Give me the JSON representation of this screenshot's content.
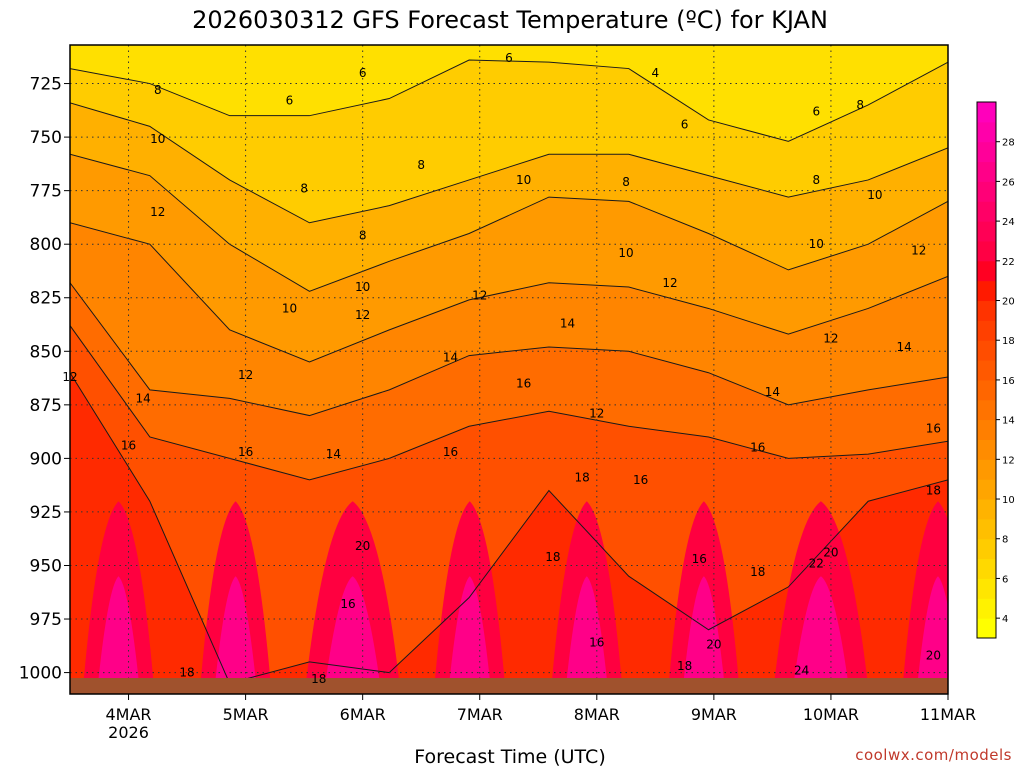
{
  "chart_data": {
    "type": "heatmap",
    "title": "2026030312 GFS Forecast Temperature (ºC) for KJAN",
    "xlabel": "Forecast Time (UTC)",
    "ylabel": "",
    "credit": "coolwx.com/models",
    "y_axis": {
      "unit": "hPa",
      "inverted": true,
      "range": [
        1010,
        707
      ],
      "ticks": [
        "725",
        "750",
        "775",
        "800",
        "825",
        "850",
        "875",
        "900",
        "925",
        "950",
        "975",
        "1000"
      ],
      "tick_values": [
        725,
        750,
        775,
        800,
        825,
        850,
        875,
        900,
        925,
        950,
        975,
        1000
      ]
    },
    "x_axis": {
      "range": [
        "2026-03-03T12",
        "2026-03-11T00"
      ],
      "ticks": [
        "4MAR",
        "5MAR",
        "6MAR",
        "7MAR",
        "8MAR",
        "9MAR",
        "10MAR",
        "11MAR"
      ],
      "tick_dates": [
        "2026-03-04",
        "2026-03-05",
        "2026-03-06",
        "2026-03-07",
        "2026-03-08",
        "2026-03-09",
        "2026-03-10",
        "2026-03-11"
      ],
      "sub_label": "2026"
    },
    "grid": true,
    "colorbar": {
      "position": "right",
      "ticks": [
        "4",
        "6",
        "8",
        "10",
        "12",
        "14",
        "16",
        "18",
        "20",
        "22",
        "24",
        "26",
        "28"
      ],
      "levels": [
        3,
        4,
        5,
        6,
        7,
        8,
        9,
        10,
        11,
        12,
        13,
        14,
        15,
        16,
        17,
        18,
        19,
        20,
        21,
        22,
        23,
        24,
        25,
        26,
        27,
        28,
        29,
        30
      ],
      "colors": [
        "#ffff00",
        "#fff200",
        "#ffe600",
        "#ffd900",
        "#ffcc00",
        "#ffbf00",
        "#ffb300",
        "#ffa500",
        "#ff9900",
        "#ff8c00",
        "#ff7f00",
        "#ff7300",
        "#ff6600",
        "#ff5900",
        "#ff4d00",
        "#ff4000",
        "#ff3300",
        "#ff1a00",
        "#ff0022",
        "#ff0044",
        "#ff0055",
        "#ff0066",
        "#ff0077",
        "#ff0088",
        "#ff0099",
        "#ff00aa",
        "#ff00bb"
      ]
    },
    "ground_color": "#a0522d",
    "isotherms": [
      {
        "value": 6,
        "pressure": [
          718,
          725,
          740,
          740,
          732,
          714,
          715,
          718,
          742,
          752,
          735,
          715
        ]
      },
      {
        "value": 8,
        "pressure": [
          734,
          745,
          770,
          790,
          782,
          770,
          758,
          758,
          768,
          778,
          770,
          755
        ]
      },
      {
        "value": 10,
        "pressure": [
          758,
          768,
          800,
          822,
          808,
          795,
          778,
          780,
          795,
          812,
          800,
          780
        ]
      },
      {
        "value": 12,
        "pressure": [
          790,
          800,
          840,
          855,
          840,
          826,
          818,
          820,
          830,
          842,
          830,
          815
        ]
      },
      {
        "value": 14,
        "pressure": [
          818,
          868,
          872,
          880,
          868,
          852,
          848,
          850,
          860,
          875,
          868,
          862
        ]
      },
      {
        "value": 16,
        "pressure": [
          838,
          890,
          900,
          910,
          900,
          885,
          878,
          885,
          890,
          900,
          898,
          892
        ]
      },
      {
        "value": 18,
        "pressure": [
          860,
          920,
          1005,
          995,
          1000,
          965,
          915,
          955,
          980,
          960,
          920,
          910
        ]
      }
    ],
    "annotations": [
      {
        "text": "4",
        "time": "2026-03-08T12",
        "pressure": 720
      },
      {
        "text": "6",
        "time": "2026-03-05T09",
        "pressure": 733
      },
      {
        "text": "6",
        "time": "2026-03-06T00",
        "pressure": 720
      },
      {
        "text": "6",
        "time": "2026-03-07T06",
        "pressure": 713
      },
      {
        "text": "6",
        "time": "2026-03-08T18",
        "pressure": 744
      },
      {
        "text": "6",
        "time": "2026-03-09T21",
        "pressure": 738
      },
      {
        "text": "8",
        "time": "2026-03-04T06",
        "pressure": 728
      },
      {
        "text": "8",
        "time": "2026-03-05T12",
        "pressure": 774
      },
      {
        "text": "8",
        "time": "2026-03-06T12",
        "pressure": 763
      },
      {
        "text": "8",
        "time": "2026-03-08T06",
        "pressure": 771
      },
      {
        "text": "8",
        "time": "2026-03-09T21",
        "pressure": 770
      },
      {
        "text": "8",
        "time": "2026-03-10T06",
        "pressure": 735
      },
      {
        "text": "8",
        "time": "2026-03-06T00",
        "pressure": 796
      },
      {
        "text": "10",
        "time": "2026-03-04T06",
        "pressure": 751
      },
      {
        "text": "10",
        "time": "2026-03-05T09",
        "pressure": 830
      },
      {
        "text": "10",
        "time": "2026-03-06T00",
        "pressure": 820
      },
      {
        "text": "10",
        "time": "2026-03-07T09",
        "pressure": 770
      },
      {
        "text": "10",
        "time": "2026-03-08T06",
        "pressure": 804
      },
      {
        "text": "10",
        "time": "2026-03-09T21",
        "pressure": 800
      },
      {
        "text": "10",
        "time": "2026-03-10T09",
        "pressure": 777
      },
      {
        "text": "12",
        "time": "2026-03-04T06",
        "pressure": 785
      },
      {
        "text": "12",
        "time": "2026-03-05T00",
        "pressure": 861
      },
      {
        "text": "12",
        "time": "2026-03-06T00",
        "pressure": 833
      },
      {
        "text": "12",
        "time": "2026-03-07T00",
        "pressure": 824
      },
      {
        "text": "12",
        "time": "2026-03-08T00",
        "pressure": 879
      },
      {
        "text": "12",
        "time": "2026-03-08T15",
        "pressure": 818
      },
      {
        "text": "12",
        "time": "2026-03-10T00",
        "pressure": 844
      },
      {
        "text": "12",
        "time": "2026-03-10T18",
        "pressure": 803
      },
      {
        "text": "12",
        "time": "2026-03-03T12",
        "pressure": 862
      },
      {
        "text": "14",
        "time": "2026-03-04T03",
        "pressure": 872
      },
      {
        "text": "14",
        "time": "2026-03-05T18",
        "pressure": 898
      },
      {
        "text": "14",
        "time": "2026-03-06T18",
        "pressure": 853
      },
      {
        "text": "14",
        "time": "2026-03-07T18",
        "pressure": 837
      },
      {
        "text": "14",
        "time": "2026-03-09T12",
        "pressure": 869
      },
      {
        "text": "14",
        "time": "2026-03-10T15",
        "pressure": 848
      },
      {
        "text": "16",
        "time": "2026-03-04T00",
        "pressure": 894
      },
      {
        "text": "16",
        "time": "2026-03-05T00",
        "pressure": 897
      },
      {
        "text": "16",
        "time": "2026-03-06T18",
        "pressure": 897
      },
      {
        "text": "16",
        "time": "2026-03-07T09",
        "pressure": 865
      },
      {
        "text": "16",
        "time": "2026-03-08T09",
        "pressure": 910
      },
      {
        "text": "16",
        "time": "2026-03-08T21",
        "pressure": 947
      },
      {
        "text": "16",
        "time": "2026-03-09T09",
        "pressure": 895
      },
      {
        "text": "16",
        "time": "2026-03-10T21",
        "pressure": 886
      },
      {
        "text": "16",
        "time": "2026-03-05T21",
        "pressure": 968
      },
      {
        "text": "16",
        "time": "2026-03-08T00",
        "pressure": 986
      },
      {
        "text": "18",
        "time": "2026-03-04T12",
        "pressure": 1000
      },
      {
        "text": "18",
        "time": "2026-03-05T15",
        "pressure": 1003
      },
      {
        "text": "18",
        "time": "2026-03-07T15",
        "pressure": 946
      },
      {
        "text": "18",
        "time": "2026-03-07T21",
        "pressure": 909
      },
      {
        "text": "18",
        "time": "2026-03-08T18",
        "pressure": 997
      },
      {
        "text": "18",
        "time": "2026-03-09T09",
        "pressure": 953
      },
      {
        "text": "18",
        "time": "2026-03-10T21",
        "pressure": 915
      },
      {
        "text": "20",
        "time": "2026-03-06T00",
        "pressure": 941
      },
      {
        "text": "20",
        "time": "2026-03-09T00",
        "pressure": 987
      },
      {
        "text": "20",
        "time": "2026-03-10T00",
        "pressure": 944
      },
      {
        "text": "20",
        "time": "2026-03-10T21",
        "pressure": 992
      },
      {
        "text": "22",
        "time": "2026-03-09T21",
        "pressure": 949
      },
      {
        "text": "24",
        "time": "2026-03-09T18",
        "pressure": 999
      }
    ]
  }
}
